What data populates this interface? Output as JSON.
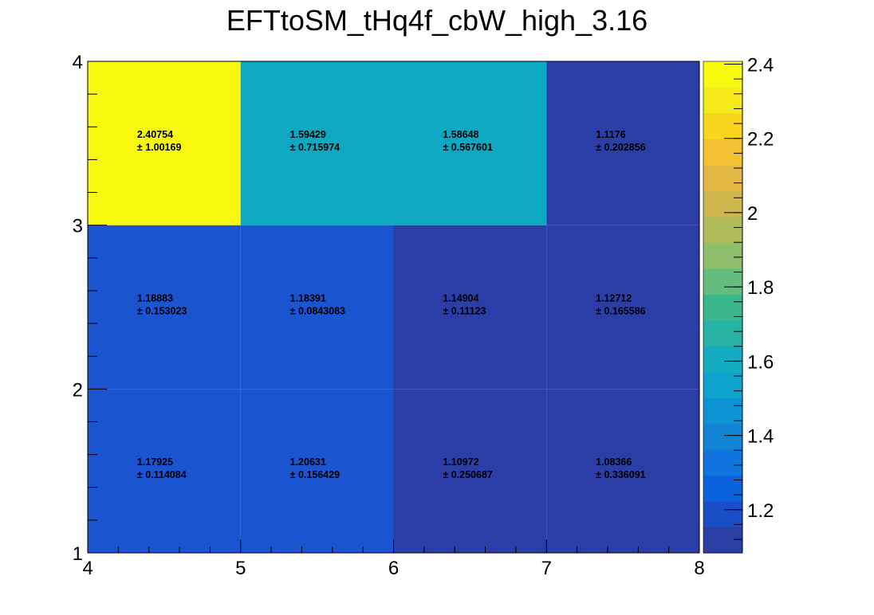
{
  "chart_data": {
    "type": "heatmap",
    "title": "EFTtoSM_tHq4f_cbW_high_3.16",
    "xlabel": "",
    "ylabel": "",
    "x_edges": [
      4,
      5,
      6,
      7,
      8
    ],
    "y_edges": [
      1,
      2,
      3,
      4
    ],
    "xlim": [
      4,
      8
    ],
    "ylim": [
      1,
      4
    ],
    "x_tick_labels": [
      "4",
      "5",
      "6",
      "7",
      "8"
    ],
    "y_tick_labels": [
      "1",
      "2",
      "3",
      "4"
    ],
    "zlim": [
      1.0837,
      2.4075
    ],
    "z_tick_labels": [
      "1.2",
      "1.4",
      "1.6",
      "1.8",
      "2",
      "2.2",
      "2.4"
    ],
    "z_ticks": [
      1.2,
      1.4,
      1.6,
      1.8,
      2.0,
      2.2,
      2.4
    ],
    "colormap": [
      "#2b3ea3",
      "#1a4ec8",
      "#0b62dd",
      "#0f74df",
      "#1184d6",
      "#0c94d2",
      "#0ea3cd",
      "#14acc0",
      "#27b3a6",
      "#3bb78e",
      "#64bd7d",
      "#8fbe6b",
      "#b0bb5c",
      "#cfb64d",
      "#e4b946",
      "#f4c132",
      "#f7d51f",
      "#f6ea1b",
      "#f9fb0e"
    ],
    "cells": [
      {
        "x": [
          4,
          5
        ],
        "y": [
          1,
          2
        ],
        "value": "1.17925",
        "error": "± 0.114084",
        "color": "#1a54d0"
      },
      {
        "x": [
          5,
          6
        ],
        "y": [
          1,
          2
        ],
        "value": "1.20631",
        "error": "± 0.156429",
        "color": "#1a54d0"
      },
      {
        "x": [
          6,
          7
        ],
        "y": [
          1,
          2
        ],
        "value": "1.10972",
        "error": "± 0.250687",
        "color": "#2b3ea8"
      },
      {
        "x": [
          7,
          8
        ],
        "y": [
          1,
          2
        ],
        "value": "1.08366",
        "error": "± 0.336091",
        "color": "#2b3ea8"
      },
      {
        "x": [
          4,
          5
        ],
        "y": [
          2,
          3
        ],
        "value": "1.18883",
        "error": "± 0.153023",
        "color": "#1a54d0"
      },
      {
        "x": [
          5,
          6
        ],
        "y": [
          2,
          3
        ],
        "value": "1.18391",
        "error": "± 0.0843083",
        "color": "#1a54d0"
      },
      {
        "x": [
          6,
          7
        ],
        "y": [
          2,
          3
        ],
        "value": "1.14904",
        "error": "± 0.11123",
        "color": "#2b3ea8"
      },
      {
        "x": [
          7,
          8
        ],
        "y": [
          2,
          3
        ],
        "value": "1.12712",
        "error": "± 0.165586",
        "color": "#2b3ea8"
      },
      {
        "x": [
          4,
          5
        ],
        "y": [
          3,
          4
        ],
        "value": "2.40754",
        "error": "± 1.00169",
        "color": "#f7f80e"
      },
      {
        "x": [
          5,
          6
        ],
        "y": [
          3,
          4
        ],
        "value": "1.59429",
        "error": "± 0.715974",
        "color": "#0da9c3"
      },
      {
        "x": [
          6,
          7
        ],
        "y": [
          3,
          4
        ],
        "value": "1.58648",
        "error": "± 0.567601",
        "color": "#0da9c3"
      },
      {
        "x": [
          7,
          8
        ],
        "y": [
          3,
          4
        ],
        "value": "1.1176",
        "error": "± 0.202856",
        "color": "#2b3ea8"
      }
    ]
  }
}
